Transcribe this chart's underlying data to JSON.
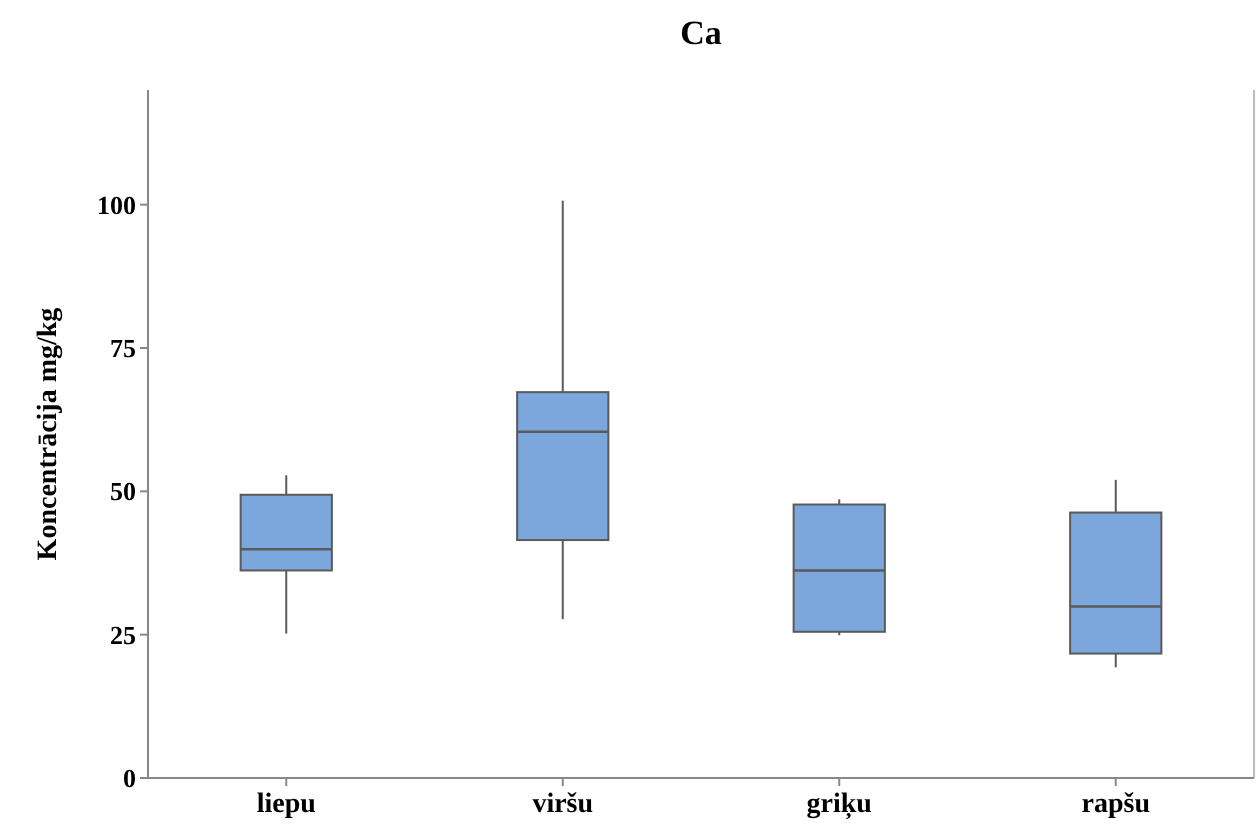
{
  "chart_data": {
    "type": "box",
    "title": "Ca",
    "ylabel": "Koncentrācija mg/kg",
    "categories": [
      "liepu",
      "viršu",
      "griķu",
      "rapšu"
    ],
    "series": [
      {
        "color": "#7ba7dc",
        "boxes": [
          {
            "low": 25.2,
            "q1": 36.2,
            "median": 39.9,
            "q3": 49.4,
            "high": 52.8
          },
          {
            "low": 27.7,
            "q1": 41.5,
            "median": 60.4,
            "q3": 67.3,
            "high": 100.7
          },
          {
            "low": 24.9,
            "q1": 25.5,
            "median": 36.2,
            "q3": 47.7,
            "high": 48.6
          },
          {
            "low": 19.3,
            "q1": 21.7,
            "median": 29.9,
            "q3": 46.3,
            "high": 52
          }
        ]
      }
    ],
    "ylim": [
      0,
      120
    ],
    "yticks": [
      0,
      25,
      50,
      75,
      100
    ],
    "grid": false
  }
}
